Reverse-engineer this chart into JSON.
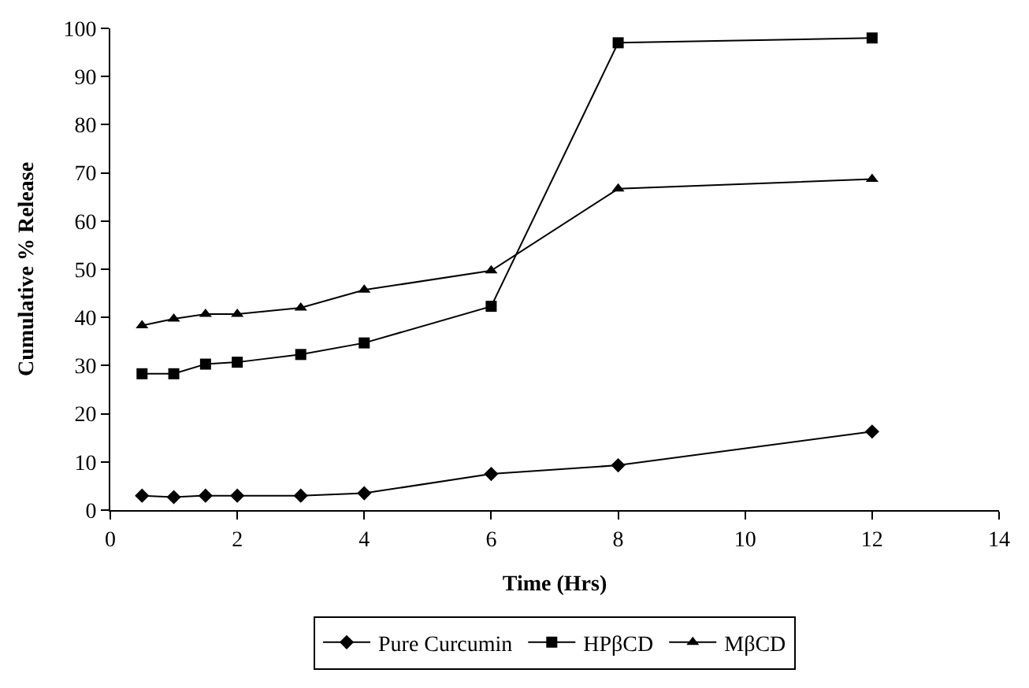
{
  "chart_data": {
    "type": "line",
    "xlabel": "Time (Hrs)",
    "ylabel": "Cumulative % Release",
    "x": [
      0.5,
      1,
      1.5,
      2,
      3,
      4,
      6,
      8,
      12
    ],
    "series": [
      {
        "name": "Pure Curcumin",
        "color": "#000000",
        "marker": "diamond",
        "values": [
          3,
          2.7,
          3,
          3,
          3,
          3.5,
          7.5,
          9.3,
          16.3
        ]
      },
      {
        "name": "HPβCD",
        "color": "#000000",
        "marker": "square",
        "values": [
          28.3,
          28.3,
          30.3,
          30.7,
          32.3,
          34.7,
          42.3,
          97,
          98
        ]
      },
      {
        "name": "MβCD",
        "color": "#000000",
        "marker": "triangle",
        "values": [
          38.3,
          39.7,
          40.7,
          40.7,
          42,
          45.7,
          49.7,
          66.7,
          68.7
        ]
      }
    ],
    "xlim": [
      0,
      14
    ],
    "xticks": [
      0,
      2,
      4,
      6,
      8,
      10,
      12,
      14
    ],
    "ylim": [
      0,
      100
    ],
    "yticks": [
      0,
      10,
      20,
      30,
      40,
      50,
      60,
      70,
      80,
      90,
      100
    ],
    "grid": false,
    "legend": "bottom",
    "line_style": "solid"
  }
}
